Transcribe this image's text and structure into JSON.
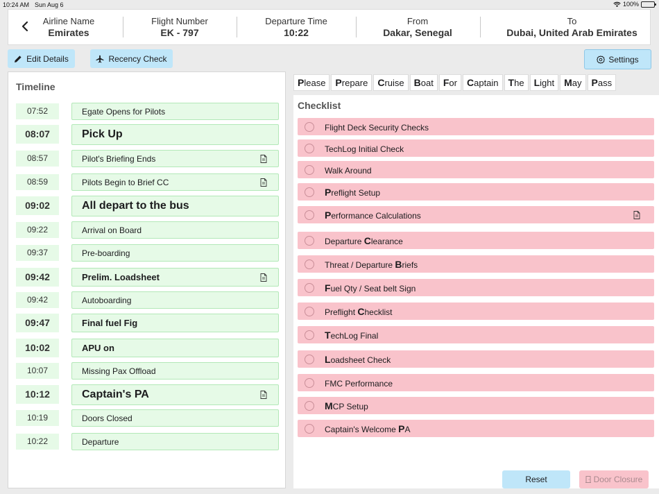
{
  "status_bar": {
    "time": "10:24 AM",
    "date": "Sun Aug 6",
    "battery": "100%"
  },
  "header": {
    "airline_label": "Airline Name",
    "airline_value": "Emirates",
    "flight_label": "Flight Number",
    "flight_value": "EK - 797",
    "departure_label": "Departure Time",
    "departure_value": "10:22",
    "from_label": "From",
    "from_value": "Dakar, Senegal",
    "to_label": "To",
    "to_value": "Dubai, United Arab Emirates"
  },
  "toolbar": {
    "edit_label": "Edit Details",
    "recency_label": "Recency Check",
    "settings_label": "Settings"
  },
  "timeline": {
    "title": "Timeline",
    "items": [
      {
        "time": "07:52",
        "label": "Egate Opens for Pilots",
        "doc": false
      },
      {
        "time": "08:07",
        "label": "Pick Up",
        "doc": false
      },
      {
        "time": "08:57",
        "label": "Pilot's Briefing Ends",
        "doc": true
      },
      {
        "time": "08:59",
        "label": "Pilots Begin to Brief CC",
        "doc": true
      },
      {
        "time": "09:02",
        "label": "All depart to the bus",
        "doc": false
      },
      {
        "time": "09:22",
        "label": "Arrival on Board",
        "doc": false
      },
      {
        "time": "09:37",
        "label": "Pre-boarding",
        "doc": false
      },
      {
        "time": "09:42",
        "label": "Prelim. Loadsheet",
        "doc": true
      },
      {
        "time": "09:42",
        "label": "Autoboarding",
        "doc": false
      },
      {
        "time": "09:47",
        "label": "Final fuel Fig",
        "doc": false
      },
      {
        "time": "10:02",
        "label": "APU on",
        "doc": false
      },
      {
        "time": "10:07",
        "label": "Missing Pax Offload",
        "doc": false
      },
      {
        "time": "10:12",
        "label": "Captain's PA",
        "doc": true
      },
      {
        "time": "10:19",
        "label": "Doors Closed",
        "doc": false
      },
      {
        "time": "10:22",
        "label": "Departure",
        "doc": false
      }
    ]
  },
  "tabs": [
    {
      "first": "P",
      "rest": "lease"
    },
    {
      "first": "P",
      "rest": "repare"
    },
    {
      "first": "C",
      "rest": "ruise"
    },
    {
      "first": "B",
      "rest": "oat"
    },
    {
      "first": "F",
      "rest": "or"
    },
    {
      "first": "C",
      "rest": "aptain"
    },
    {
      "first": "T",
      "rest": "he"
    },
    {
      "first": "L",
      "rest": "ight"
    },
    {
      "first": "M",
      "rest": "ay"
    },
    {
      "first": "P",
      "rest": "ass"
    }
  ],
  "checklist": {
    "title": "Checklist",
    "items": [
      {
        "pre": "",
        "bold": "",
        "post": "Flight Deck Security Checks",
        "doc": false
      },
      {
        "pre": "",
        "bold": "",
        "post": "TechLog Initial Check",
        "doc": false
      },
      {
        "pre": "",
        "bold": "",
        "post": "Walk Around",
        "doc": false
      },
      {
        "pre": "",
        "bold": "P",
        "post": "reflight Setup",
        "doc": false
      },
      {
        "pre": "",
        "bold": "P",
        "post": "erformance Calculations",
        "doc": true
      },
      {
        "pre": "Departure ",
        "bold": "C",
        "post": "learance",
        "doc": false
      },
      {
        "pre": "Threat / Departure ",
        "bold": "B",
        "post": "riefs",
        "doc": false
      },
      {
        "pre": "",
        "bold": "F",
        "post": "uel Qty / Seat belt Sign",
        "doc": false
      },
      {
        "pre": "Preflight ",
        "bold": "C",
        "post": "hecklist",
        "doc": false
      },
      {
        "pre": "",
        "bold": "T",
        "post": "echLog Final",
        "doc": false
      },
      {
        "pre": "",
        "bold": "L",
        "post": "oadsheet Check",
        "doc": false
      },
      {
        "pre": "",
        "bold": "",
        "post": "FMC Performance",
        "doc": false
      },
      {
        "pre": "",
        "bold": "M",
        "post": "CP Setup",
        "doc": false
      },
      {
        "pre": "Captain's Welcome ",
        "bold": "P",
        "post": "A",
        "doc": false
      }
    ]
  },
  "footer": {
    "reset_label": "Reset",
    "door_label": "Door Closure"
  },
  "colors": {
    "timeline_bg": "#e6fae7",
    "checklist_item_bg": "#f9c3cb",
    "button_bg": "#bfe6f9"
  }
}
